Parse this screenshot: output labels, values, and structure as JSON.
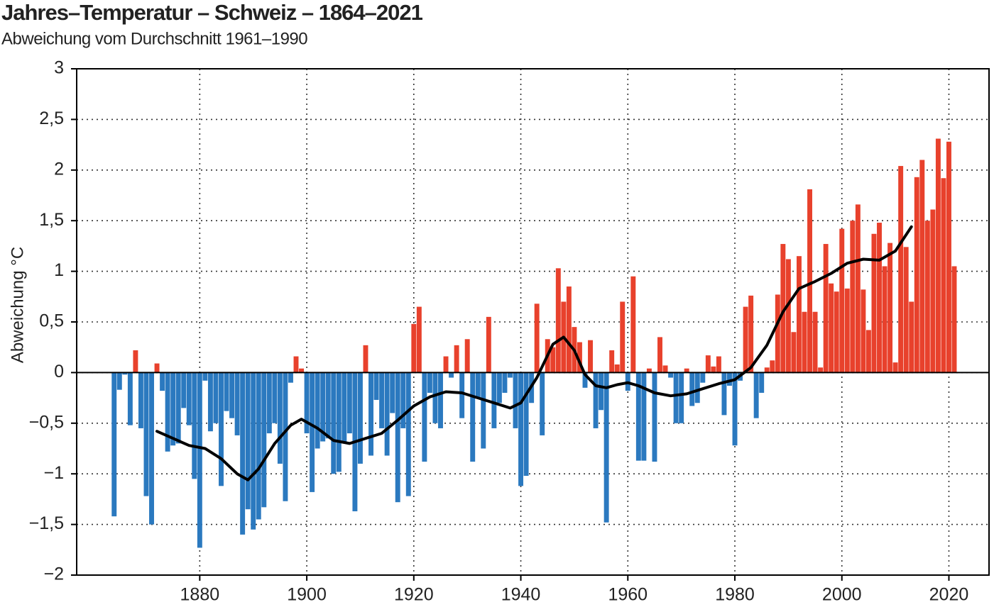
{
  "chart_data": {
    "type": "bar",
    "title": "Jahres–Temperatur – Schweiz – 1864–2021",
    "subtitle": "Abweichung vom Durchschnitt 1961–1990",
    "y_label": "Abweichung °C",
    "positive_color": "#e8412c",
    "negative_color": "#2b79bf",
    "grid": true,
    "xlim": [
      1857,
      2027.5
    ],
    "ylim": [
      -2,
      3
    ],
    "xticks": [
      1880,
      1900,
      1920,
      1940,
      1960,
      1980,
      2000,
      2020
    ],
    "yticks": [
      {
        "value": -2,
        "label": "−2"
      },
      {
        "value": -1.5,
        "label": "−1,5"
      },
      {
        "value": -1,
        "label": "−1"
      },
      {
        "value": -0.5,
        "label": "−0,5"
      },
      0,
      {
        "value": 0.5,
        "label": "0,5"
      },
      1,
      {
        "value": 1.5,
        "label": "1,5"
      },
      2,
      {
        "value": 2.5,
        "label": "2,5"
      },
      3
    ],
    "x": [
      1864,
      1865,
      1866,
      1867,
      1868,
      1869,
      1870,
      1871,
      1872,
      1873,
      1874,
      1875,
      1876,
      1877,
      1878,
      1879,
      1880,
      1881,
      1882,
      1883,
      1884,
      1885,
      1886,
      1887,
      1888,
      1889,
      1890,
      1891,
      1892,
      1893,
      1894,
      1895,
      1896,
      1897,
      1898,
      1899,
      1900,
      1901,
      1902,
      1903,
      1904,
      1905,
      1906,
      1907,
      1908,
      1909,
      1910,
      1911,
      1912,
      1913,
      1914,
      1915,
      1916,
      1917,
      1918,
      1919,
      1920,
      1921,
      1922,
      1923,
      1924,
      1925,
      1926,
      1927,
      1928,
      1929,
      1930,
      1931,
      1932,
      1933,
      1934,
      1935,
      1936,
      1937,
      1938,
      1939,
      1940,
      1941,
      1942,
      1943,
      1944,
      1945,
      1946,
      1947,
      1948,
      1949,
      1950,
      1951,
      1952,
      1953,
      1954,
      1955,
      1956,
      1957,
      1958,
      1959,
      1960,
      1961,
      1962,
      1963,
      1964,
      1965,
      1966,
      1967,
      1968,
      1969,
      1970,
      1971,
      1972,
      1973,
      1974,
      1975,
      1976,
      1977,
      1978,
      1979,
      1980,
      1981,
      1982,
      1983,
      1984,
      1985,
      1986,
      1987,
      1988,
      1989,
      1990,
      1991,
      1992,
      1993,
      1994,
      1995,
      1996,
      1997,
      1998,
      1999,
      2000,
      2001,
      2002,
      2003,
      2004,
      2005,
      2006,
      2007,
      2008,
      2009,
      2010,
      2011,
      2012,
      2013,
      2014,
      2015,
      2016,
      2017,
      2018,
      2019,
      2020,
      2021
    ],
    "values": [
      -1.42,
      -0.17,
      -0.02,
      -0.52,
      0.22,
      -0.55,
      -1.22,
      -1.5,
      0.09,
      -0.18,
      -0.78,
      -0.72,
      -0.7,
      -0.35,
      -0.52,
      -1.05,
      -1.73,
      -0.08,
      -0.58,
      -0.5,
      -1.12,
      -0.38,
      -0.45,
      -0.62,
      -1.6,
      -1.35,
      -1.55,
      -1.45,
      -1.33,
      -0.6,
      -0.5,
      -0.9,
      -1.27,
      -0.1,
      0.16,
      0.04,
      -0.6,
      -1.18,
      -0.75,
      -0.68,
      -0.65,
      -1.0,
      -0.98,
      -0.7,
      -0.6,
      -1.37,
      -0.9,
      0.27,
      -0.82,
      -0.27,
      -0.55,
      -0.82,
      -0.4,
      -1.28,
      -0.55,
      -1.22,
      0.48,
      0.65,
      -0.88,
      -0.2,
      -0.5,
      -0.55,
      0.16,
      -0.05,
      0.27,
      -0.45,
      0.33,
      -0.88,
      -0.25,
      -0.75,
      0.55,
      -0.55,
      -0.3,
      -0.2,
      -0.05,
      -0.55,
      -1.12,
      -1.02,
      -0.3,
      0.68,
      -0.62,
      0.33,
      0.25,
      1.03,
      0.7,
      0.85,
      0.45,
      0.3,
      -0.15,
      0.32,
      -0.55,
      -0.37,
      -1.48,
      0.22,
      0.08,
      0.7,
      -0.18,
      0.95,
      -0.87,
      -0.87,
      0.04,
      -0.88,
      0.35,
      0.07,
      -0.05,
      -0.5,
      -0.5,
      0.04,
      -0.33,
      -0.3,
      -0.1,
      0.17,
      0.06,
      0.16,
      -0.42,
      -0.13,
      -0.72,
      -0.08,
      0.65,
      0.76,
      -0.45,
      -0.2,
      0.05,
      0.12,
      0.77,
      1.27,
      1.12,
      0.4,
      1.15,
      0.6,
      1.81,
      0.6,
      0.05,
      1.27,
      0.88,
      0.8,
      1.42,
      0.83,
      1.5,
      1.66,
      0.82,
      0.42,
      1.37,
      1.48,
      1.05,
      1.28,
      0.1,
      2.04,
      1.24,
      0.7,
      1.93,
      2.1,
      1.5,
      1.61,
      2.31,
      1.92,
      2.28,
      1.05
    ],
    "line": {
      "color": "#000000",
      "x": [
        1872,
        1875,
        1878,
        1881,
        1884,
        1887,
        1889,
        1891,
        1894,
        1897,
        1899,
        1902,
        1905,
        1908,
        1911,
        1914,
        1917,
        1920,
        1923,
        1926,
        1929,
        1932,
        1935,
        1938,
        1940,
        1943,
        1946,
        1948,
        1950,
        1952,
        1954,
        1956,
        1958,
        1960,
        1962,
        1965,
        1968,
        1971,
        1974,
        1977,
        1980,
        1983,
        1986,
        1989,
        1992,
        1995,
        1998,
        2001,
        2004,
        2007,
        2010,
        2013
      ],
      "values": [
        -0.58,
        -0.65,
        -0.72,
        -0.75,
        -0.85,
        -1.0,
        -1.06,
        -0.95,
        -0.7,
        -0.52,
        -0.46,
        -0.55,
        -0.67,
        -0.7,
        -0.65,
        -0.6,
        -0.47,
        -0.33,
        -0.24,
        -0.19,
        -0.2,
        -0.25,
        -0.3,
        -0.35,
        -0.3,
        -0.05,
        0.28,
        0.35,
        0.22,
        -0.02,
        -0.13,
        -0.15,
        -0.12,
        -0.1,
        -0.13,
        -0.2,
        -0.23,
        -0.21,
        -0.16,
        -0.11,
        -0.07,
        0.05,
        0.27,
        0.6,
        0.83,
        0.9,
        0.98,
        1.08,
        1.12,
        1.11,
        1.2,
        1.44
      ]
    }
  }
}
